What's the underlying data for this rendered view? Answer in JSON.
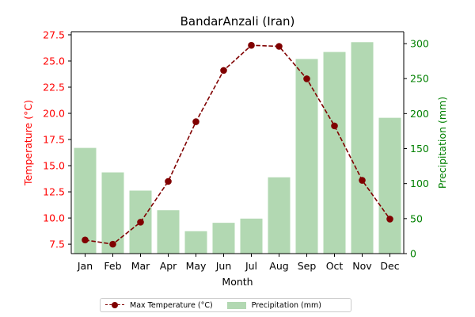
{
  "chart_data": {
    "type": "bar+line",
    "title": "BandarAnzali (Iran)",
    "xlabel": "Month",
    "categories": [
      "Jan",
      "Feb",
      "Mar",
      "Apr",
      "May",
      "Jun",
      "Jul",
      "Aug",
      "Sep",
      "Oct",
      "Nov",
      "Dec"
    ],
    "series": [
      {
        "name": "Max Temperature (°C)",
        "type": "line",
        "axis": "left",
        "color": "#800000",
        "values": [
          7.9,
          7.5,
          9.6,
          13.5,
          19.2,
          24.1,
          26.5,
          26.4,
          23.3,
          18.8,
          13.6,
          9.9
        ]
      },
      {
        "name": "Precipitation (mm)",
        "type": "bar",
        "axis": "right",
        "color": "#b2d8b2",
        "values": [
          151,
          116,
          90,
          62,
          32,
          44,
          50,
          109,
          278,
          288,
          302,
          194
        ]
      }
    ],
    "y_left": {
      "label": "Temperature (°C)",
      "color": "#ff0000",
      "range": [
        6.6,
        27.8
      ],
      "ticks": [
        "7.5",
        "10.0",
        "12.5",
        "15.0",
        "17.5",
        "20.0",
        "22.5",
        "25.0",
        "27.5"
      ]
    },
    "y_right": {
      "label": "Precipitation (mm)",
      "color": "#008000",
      "range": [
        0,
        317
      ],
      "ticks": [
        "0",
        "50",
        "100",
        "150",
        "200",
        "250",
        "300"
      ]
    },
    "grid": false,
    "legend_position": "bottom-center"
  }
}
